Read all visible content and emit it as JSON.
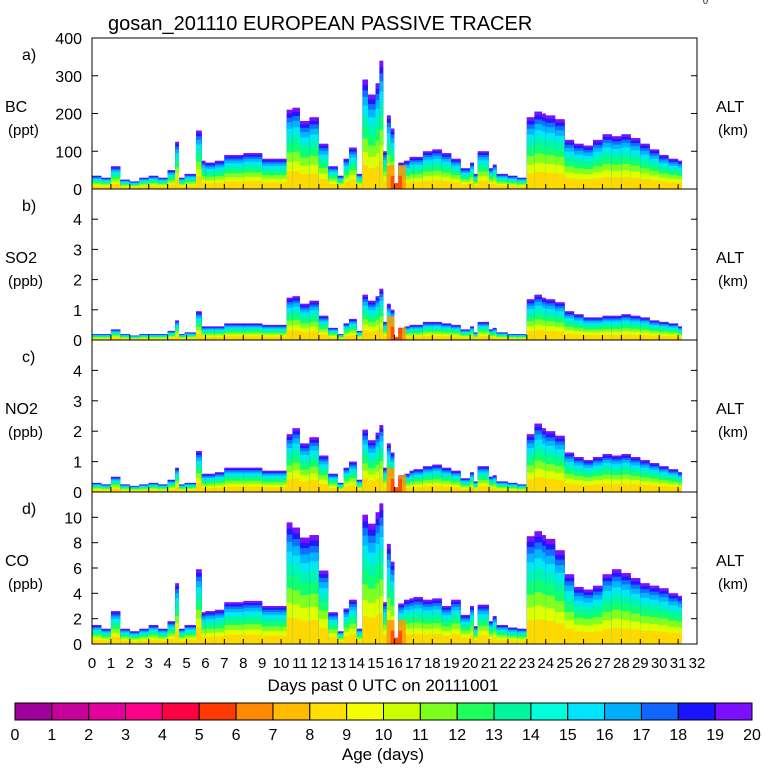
{
  "title": "gosan_201110 EUROPEAN PASSIVE TRACER",
  "corner_mark": "0",
  "chart_data": [
    {
      "type": "area",
      "panel_label": "a)",
      "species": "BC",
      "unit": "(ppt)",
      "right_label": "ALT",
      "right_unit": "(km)",
      "ylim": [
        0,
        400
      ],
      "yticks": [
        "0",
        "100",
        "200",
        "300",
        "400"
      ],
      "x": [
        0,
        0.5,
        1,
        1.5,
        2,
        2.5,
        3,
        3.5,
        4,
        4.4,
        4.6,
        4.9,
        5.5,
        5.8,
        6,
        6.5,
        7,
        8,
        9,
        10,
        10.3,
        10.6,
        11,
        11.5,
        12,
        12.5,
        13,
        13.3,
        13.6,
        14,
        14.3,
        14.6,
        15,
        15.2,
        15.4,
        15.6,
        15.8,
        16,
        16.2,
        16.5,
        16.8,
        17,
        17.5,
        18,
        18.5,
        19,
        19.5,
        20,
        20.2,
        20.4,
        21,
        21.2,
        21.4,
        22,
        22.5,
        23,
        23.4,
        23.8,
        24,
        24.5,
        25,
        25.5,
        26,
        26.5,
        27,
        27.5,
        28,
        28.5,
        29,
        29.5,
        30,
        30.5,
        31
      ],
      "values": [
        35,
        30,
        60,
        25,
        20,
        30,
        35,
        30,
        50,
        125,
        30,
        40,
        155,
        75,
        70,
        75,
        90,
        95,
        80,
        80,
        210,
        215,
        180,
        190,
        120,
        60,
        35,
        80,
        110,
        40,
        290,
        250,
        280,
        340,
        100,
        195,
        160,
        15,
        70,
        75,
        85,
        85,
        100,
        105,
        95,
        80,
        55,
        70,
        40,
        100,
        55,
        65,
        40,
        35,
        30,
        190,
        205,
        200,
        195,
        185,
        130,
        120,
        115,
        130,
        145,
        140,
        145,
        135,
        120,
        105,
        90,
        80,
        75
      ],
      "annotations": [
        {
          "text": "gosan_201110 EUROPEAN PASSIVE TRACER"
        }
      ]
    },
    {
      "type": "area",
      "panel_label": "b)",
      "species": "SO2",
      "unit": "(ppb)",
      "right_label": "ALT",
      "right_unit": "(km)",
      "ylim": [
        0,
        5
      ],
      "yticks": [
        "0",
        "1",
        "2",
        "3",
        "4"
      ],
      "x": [
        0,
        0.5,
        1,
        1.5,
        2,
        2.5,
        3,
        3.5,
        4,
        4.4,
        4.6,
        4.9,
        5.5,
        5.8,
        6,
        6.5,
        7,
        8,
        9,
        10,
        10.3,
        10.6,
        11,
        11.5,
        12,
        12.5,
        13,
        13.3,
        13.6,
        14,
        14.3,
        14.6,
        15,
        15.2,
        15.4,
        15.6,
        15.8,
        16,
        16.2,
        16.5,
        16.8,
        17,
        17.5,
        18,
        18.5,
        19,
        19.5,
        20,
        20.2,
        20.4,
        21,
        21.2,
        21.4,
        22,
        22.5,
        23,
        23.4,
        23.8,
        24,
        24.5,
        25,
        25.5,
        26,
        26.5,
        27,
        27.5,
        28,
        28.5,
        29,
        29.5,
        30,
        30.5,
        31
      ],
      "values": [
        0.2,
        0.2,
        0.35,
        0.2,
        0.15,
        0.2,
        0.2,
        0.2,
        0.3,
        0.65,
        0.2,
        0.25,
        0.95,
        0.45,
        0.45,
        0.45,
        0.55,
        0.55,
        0.5,
        0.5,
        1.4,
        1.45,
        1.2,
        1.3,
        0.8,
        0.4,
        0.2,
        0.55,
        0.7,
        0.3,
        1.5,
        1.3,
        1.45,
        1.7,
        0.6,
        1.2,
        1.0,
        0.1,
        0.4,
        0.45,
        0.5,
        0.5,
        0.6,
        0.6,
        0.55,
        0.5,
        0.35,
        0.45,
        0.25,
        0.6,
        0.35,
        0.4,
        0.25,
        0.2,
        0.2,
        1.35,
        1.5,
        1.4,
        1.35,
        1.25,
        0.95,
        0.85,
        0.75,
        0.75,
        0.8,
        0.8,
        0.85,
        0.8,
        0.75,
        0.65,
        0.6,
        0.55,
        0.45
      ]
    },
    {
      "type": "area",
      "panel_label": "c)",
      "species": "NO2",
      "unit": "(ppb)",
      "right_label": "ALT",
      "right_unit": "(km)",
      "ylim": [
        0,
        5
      ],
      "yticks": [
        "0",
        "1",
        "2",
        "3",
        "4"
      ],
      "x": [
        0,
        0.5,
        1,
        1.5,
        2,
        2.5,
        3,
        3.5,
        4,
        4.4,
        4.6,
        4.9,
        5.5,
        5.8,
        6,
        6.5,
        7,
        8,
        9,
        10,
        10.3,
        10.6,
        11,
        11.5,
        12,
        12.5,
        13,
        13.3,
        13.6,
        14,
        14.3,
        14.6,
        15,
        15.2,
        15.4,
        15.6,
        15.8,
        16,
        16.2,
        16.5,
        16.8,
        17,
        17.5,
        18,
        18.5,
        19,
        19.5,
        20,
        20.2,
        20.4,
        21,
        21.2,
        21.4,
        22,
        22.5,
        23,
        23.4,
        23.8,
        24,
        24.5,
        25,
        25.5,
        26,
        26.5,
        27,
        27.5,
        28,
        28.5,
        29,
        29.5,
        30,
        30.5,
        31
      ],
      "values": [
        0.3,
        0.25,
        0.5,
        0.25,
        0.2,
        0.25,
        0.3,
        0.25,
        0.4,
        0.8,
        0.25,
        0.3,
        1.35,
        0.6,
        0.6,
        0.65,
        0.8,
        0.8,
        0.7,
        0.7,
        1.9,
        2.1,
        1.6,
        1.8,
        1.2,
        0.6,
        0.3,
        0.8,
        1.0,
        0.4,
        2.05,
        1.7,
        1.95,
        2.2,
        0.8,
        1.6,
        1.3,
        0.15,
        0.55,
        0.6,
        0.7,
        0.75,
        0.85,
        0.9,
        0.8,
        0.7,
        0.45,
        0.65,
        0.35,
        0.85,
        0.5,
        0.55,
        0.35,
        0.3,
        0.25,
        1.9,
        2.25,
        2.1,
        2.0,
        1.85,
        1.3,
        1.15,
        1.05,
        1.15,
        1.25,
        1.2,
        1.25,
        1.15,
        1.05,
        0.95,
        0.85,
        0.75,
        0.65
      ]
    },
    {
      "type": "area",
      "panel_label": "d)",
      "species": "CO",
      "unit": "(ppb)",
      "right_label": "ALT",
      "right_unit": "(km)",
      "ylim": [
        0,
        12
      ],
      "yticks": [
        "0",
        "2",
        "4",
        "6",
        "8",
        "10"
      ],
      "x": [
        0,
        0.5,
        1,
        1.5,
        2,
        2.5,
        3,
        3.5,
        4,
        4.4,
        4.6,
        4.9,
        5.5,
        5.8,
        6,
        6.5,
        7,
        8,
        9,
        10,
        10.3,
        10.6,
        11,
        11.5,
        12,
        12.5,
        13,
        13.3,
        13.6,
        14,
        14.3,
        14.6,
        15,
        15.2,
        15.4,
        15.6,
        15.8,
        16,
        16.2,
        16.5,
        16.8,
        17,
        17.5,
        18,
        18.5,
        19,
        19.5,
        20,
        20.2,
        20.4,
        21,
        21.2,
        21.4,
        22,
        22.5,
        23,
        23.4,
        23.8,
        24,
        24.5,
        25,
        25.5,
        26,
        26.5,
        27,
        27.5,
        28,
        28.5,
        29,
        29.5,
        30,
        30.5,
        31
      ],
      "values": [
        1.5,
        1.2,
        2.6,
        1.2,
        1.0,
        1.2,
        1.5,
        1.2,
        1.8,
        4.8,
        1.2,
        1.5,
        5.9,
        2.5,
        2.6,
        2.7,
        3.3,
        3.4,
        3.0,
        3.0,
        9.6,
        9.2,
        8.4,
        8.6,
        5.8,
        2.5,
        1.0,
        2.8,
        3.5,
        1.2,
        10.2,
        9.5,
        10.4,
        11.1,
        3.3,
        7.9,
        6.5,
        0.5,
        3.2,
        3.5,
        3.6,
        3.7,
        3.5,
        3.6,
        3.0,
        3.5,
        2.3,
        3.0,
        1.4,
        3.1,
        1.8,
        2.2,
        1.5,
        1.3,
        1.2,
        8.5,
        8.9,
        8.6,
        8.3,
        7.4,
        5.5,
        4.5,
        4.3,
        4.6,
        5.5,
        5.9,
        5.6,
        5.2,
        4.8,
        4.6,
        4.4,
        4.0,
        3.8
      ]
    }
  ],
  "x_axis": {
    "label": "Days past 0 UTC on 20111001",
    "xlim": [
      0,
      32
    ],
    "ticks": [
      "0",
      "1",
      "2",
      "3",
      "4",
      "5",
      "6",
      "7",
      "8",
      "9",
      "10",
      "11",
      "12",
      "13",
      "14",
      "15",
      "16",
      "17",
      "18",
      "19",
      "20",
      "21",
      "22",
      "23",
      "24",
      "25",
      "26",
      "27",
      "28",
      "29",
      "30",
      "31",
      "32"
    ]
  },
  "colorbar": {
    "label": "Age (days)",
    "ticks": [
      "0",
      "1",
      "2",
      "3",
      "4",
      "5",
      "6",
      "7",
      "8",
      "9",
      "10",
      "11",
      "12",
      "13",
      "14",
      "15",
      "16",
      "17",
      "18",
      "19",
      "20"
    ],
    "colors": [
      "#a0009a",
      "#c8009a",
      "#e4009c",
      "#ff0088",
      "#ff0044",
      "#ff3a00",
      "#ff8a00",
      "#ffbb00",
      "#ffe000",
      "#f5ff00",
      "#ccff00",
      "#7cff1c",
      "#1cff5c",
      "#00f59c",
      "#00ffdd",
      "#00e4ff",
      "#00b0ff",
      "#1066ff",
      "#1a14ff",
      "#7a10ff"
    ]
  }
}
